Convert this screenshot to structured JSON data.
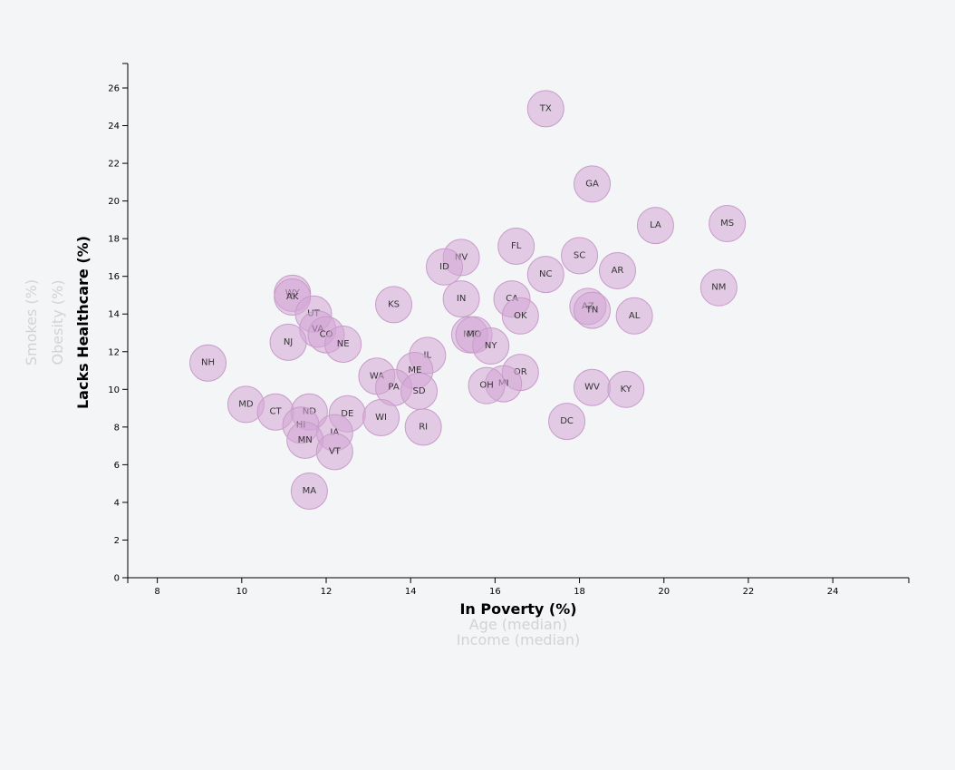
{
  "chart_data": {
    "type": "scatter",
    "xlabel_options": [
      {
        "label": "In Poverty (%)",
        "active": true
      },
      {
        "label": "Age (median)",
        "active": false
      },
      {
        "label": "Income (median)",
        "active": false
      }
    ],
    "ylabel_options": [
      {
        "label": "Lacks Healthcare (%)",
        "active": true
      },
      {
        "label": "Obesity (%)",
        "active": false
      },
      {
        "label": "Smokes (%)",
        "active": false
      }
    ],
    "xlim": [
      7.3,
      25.8
    ],
    "ylim": [
      0,
      27.3
    ],
    "x_ticks": [
      8,
      10,
      12,
      14,
      16,
      18,
      20,
      22,
      24
    ],
    "y_ticks": [
      0,
      2,
      4,
      6,
      8,
      10,
      12,
      14,
      16,
      18,
      20,
      22,
      24,
      26
    ],
    "marker_color": "#d4a6d6",
    "points": [
      {
        "abbr": "TX",
        "x": 17.2,
        "y": 24.9
      },
      {
        "abbr": "GA",
        "x": 18.3,
        "y": 20.9
      },
      {
        "abbr": "LA",
        "x": 19.8,
        "y": 18.7
      },
      {
        "abbr": "MS",
        "x": 21.5,
        "y": 18.8
      },
      {
        "abbr": "FL",
        "x": 16.5,
        "y": 17.6
      },
      {
        "abbr": "NV",
        "x": 15.2,
        "y": 17.0
      },
      {
        "abbr": "SC",
        "x": 18.0,
        "y": 17.1
      },
      {
        "abbr": "ID",
        "x": 14.8,
        "y": 16.5
      },
      {
        "abbr": "NC",
        "x": 17.2,
        "y": 16.1
      },
      {
        "abbr": "AR",
        "x": 18.9,
        "y": 16.3
      },
      {
        "abbr": "NM",
        "x": 21.3,
        "y": 15.4
      },
      {
        "abbr": "WY",
        "x": 11.2,
        "y": 15.1
      },
      {
        "abbr": "AK",
        "x": 11.2,
        "y": 14.9
      },
      {
        "abbr": "IN",
        "x": 15.2,
        "y": 14.8
      },
      {
        "abbr": "CA",
        "x": 16.4,
        "y": 14.8
      },
      {
        "abbr": "KS",
        "x": 13.6,
        "y": 14.5
      },
      {
        "abbr": "AZ",
        "x": 18.2,
        "y": 14.4
      },
      {
        "abbr": "TN",
        "x": 18.3,
        "y": 14.2
      },
      {
        "abbr": "UT",
        "x": 11.7,
        "y": 14.0
      },
      {
        "abbr": "OK",
        "x": 16.6,
        "y": 13.9
      },
      {
        "abbr": "AL",
        "x": 19.3,
        "y": 13.9
      },
      {
        "abbr": "VA",
        "x": 11.8,
        "y": 13.2
      },
      {
        "abbr": "CO",
        "x": 12.0,
        "y": 12.9
      },
      {
        "abbr": "MT",
        "x": 15.4,
        "y": 12.9
      },
      {
        "abbr": "MO",
        "x": 15.5,
        "y": 12.9
      },
      {
        "abbr": "NJ",
        "x": 11.1,
        "y": 12.5
      },
      {
        "abbr": "NE",
        "x": 12.4,
        "y": 12.4
      },
      {
        "abbr": "NY",
        "x": 15.9,
        "y": 12.3
      },
      {
        "abbr": "IL",
        "x": 14.4,
        "y": 11.8
      },
      {
        "abbr": "NH",
        "x": 9.2,
        "y": 11.4
      },
      {
        "abbr": "ME",
        "x": 14.1,
        "y": 11.0
      },
      {
        "abbr": "OR",
        "x": 16.6,
        "y": 10.9
      },
      {
        "abbr": "WA",
        "x": 13.2,
        "y": 10.7
      },
      {
        "abbr": "MI",
        "x": 16.2,
        "y": 10.3
      },
      {
        "abbr": "OH",
        "x": 15.8,
        "y": 10.2
      },
      {
        "abbr": "PA",
        "x": 13.6,
        "y": 10.1
      },
      {
        "abbr": "WV",
        "x": 18.3,
        "y": 10.1
      },
      {
        "abbr": "KY",
        "x": 19.1,
        "y": 10.0
      },
      {
        "abbr": "SD",
        "x": 14.2,
        "y": 9.9
      },
      {
        "abbr": "MD",
        "x": 10.1,
        "y": 9.2
      },
      {
        "abbr": "CT",
        "x": 10.8,
        "y": 8.8
      },
      {
        "abbr": "ND",
        "x": 11.6,
        "y": 8.8
      },
      {
        "abbr": "DE",
        "x": 12.5,
        "y": 8.7
      },
      {
        "abbr": "WI",
        "x": 13.3,
        "y": 8.5
      },
      {
        "abbr": "DC",
        "x": 17.7,
        "y": 8.3
      },
      {
        "abbr": "HI",
        "x": 11.4,
        "y": 8.1
      },
      {
        "abbr": "RI",
        "x": 14.3,
        "y": 8.0
      },
      {
        "abbr": "IA",
        "x": 12.2,
        "y": 7.7
      },
      {
        "abbr": "MN",
        "x": 11.5,
        "y": 7.3
      },
      {
        "abbr": "VT",
        "x": 12.2,
        "y": 6.7
      },
      {
        "abbr": "MA",
        "x": 11.6,
        "y": 4.6
      }
    ]
  }
}
